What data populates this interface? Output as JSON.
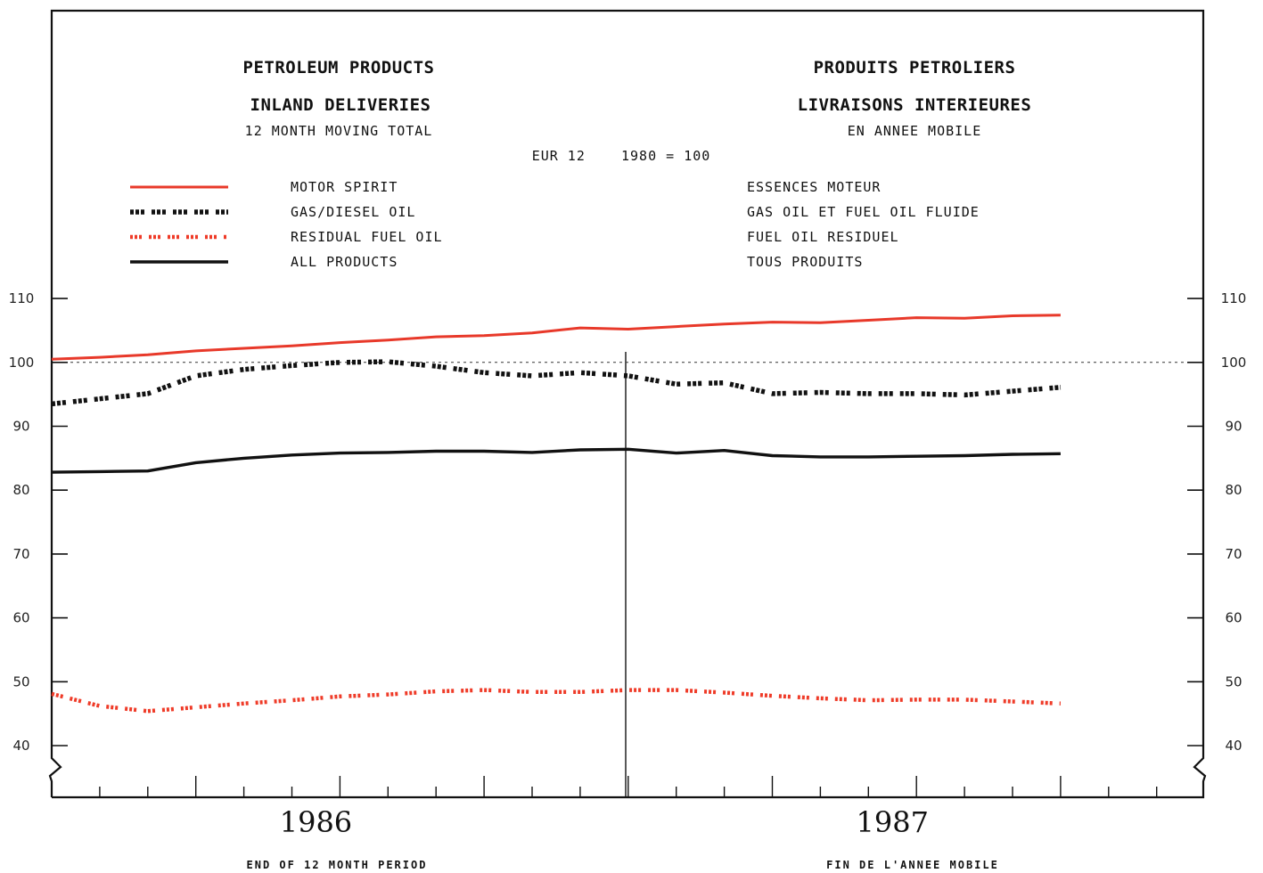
{
  "header": {
    "title_en_line1": "PETROLEUM PRODUCTS",
    "title_en_line2": "INLAND DELIVERIES",
    "subtitle_en": "12 MONTH MOVING TOTAL",
    "title_fr_line1": "PRODUITS PETROLIERS",
    "title_fr_line2": "LIVRAISONS INTERIEURES",
    "subtitle_fr": "EN ANNEE MOBILE",
    "base_note": "EUR 12    1980 = 100"
  },
  "footer": {
    "xlabel_en": "END OF 12 MONTH PERIOD",
    "xlabel_fr": "FIN DE L'ANNEE MOBILE"
  },
  "colors": {
    "motor_spirit": "#e8392a",
    "gas_diesel": "#111111",
    "residual": "#ef3b28",
    "all_products": "#111111",
    "frame": "#111111"
  },
  "chart_data": {
    "type": "line",
    "x_unit": "month index (0 = Jan 1986, 11 = Dec 1986, 12 = Jan 1987)",
    "x": [
      0,
      1,
      2,
      3,
      4,
      5,
      6,
      7,
      8,
      9,
      10,
      11,
      12,
      13,
      14,
      15,
      16,
      17,
      18,
      19,
      20,
      21
    ],
    "year_labels": [
      {
        "label": "1986",
        "center_month": 5.5
      },
      {
        "label": "1987",
        "center_month": 17.5
      }
    ],
    "yticks": [
      40,
      50,
      60,
      70,
      80,
      90,
      100,
      110
    ],
    "ylim": [
      36,
      111
    ],
    "reference_line": 100,
    "series": [
      {
        "key": "motor_spirit",
        "name_en": "MOTOR SPIRIT",
        "name_fr": "ESSENCES MOTEUR",
        "style": "solid-red",
        "values": [
          100.5,
          100.8,
          101.2,
          101.8,
          102.2,
          102.6,
          103.1,
          103.5,
          104.0,
          104.2,
          104.6,
          105.4,
          105.2,
          105.6,
          106.0,
          106.3,
          106.2,
          106.6,
          107.0,
          106.9,
          107.3,
          107.4
        ]
      },
      {
        "key": "gas_diesel",
        "name_en": "GAS/DIESEL OIL",
        "name_fr": "GAS OIL ET FUEL OIL FLUIDE",
        "style": "dashed-black",
        "values": [
          93.5,
          94.3,
          95.1,
          97.9,
          98.9,
          99.5,
          100.0,
          100.1,
          99.4,
          98.4,
          97.9,
          98.4,
          97.9,
          96.6,
          96.8,
          95.1,
          95.3,
          95.1,
          95.1,
          94.9,
          95.5,
          96.1
        ]
      },
      {
        "key": "residual",
        "name_en": "RESIDUAL FUEL OIL",
        "name_fr": "FUEL OIL RESIDUEL",
        "style": "dashed-red",
        "values": [
          48.1,
          46.2,
          45.4,
          46.0,
          46.6,
          47.1,
          47.7,
          48.0,
          48.5,
          48.7,
          48.4,
          48.4,
          48.7,
          48.7,
          48.3,
          47.8,
          47.4,
          47.1,
          47.2,
          47.2,
          46.9,
          46.6
        ]
      },
      {
        "key": "all_products",
        "name_en": "ALL PRODUCTS",
        "name_fr": "TOUS PRODUITS",
        "style": "solid-black",
        "values": [
          82.8,
          82.9,
          83.0,
          84.3,
          85.0,
          85.5,
          85.8,
          85.9,
          86.1,
          86.1,
          85.9,
          86.3,
          86.4,
          85.8,
          86.2,
          85.4,
          85.2,
          85.2,
          85.3,
          85.4,
          85.6,
          85.7
        ]
      }
    ]
  }
}
